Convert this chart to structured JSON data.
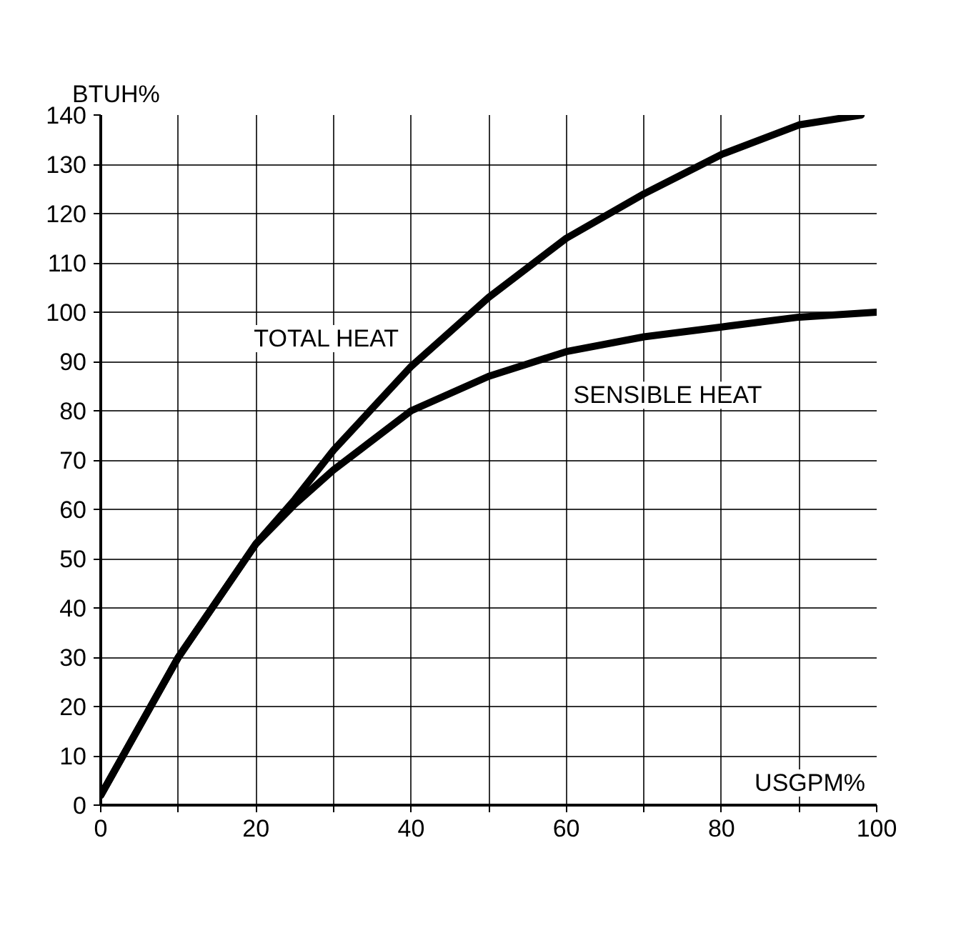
{
  "chart_data": {
    "type": "line",
    "xlabel": "USGPM%",
    "ylabel": "BTUH%",
    "x": [
      0,
      10,
      20,
      25,
      30,
      40,
      50,
      60,
      70,
      80,
      90,
      98
    ],
    "series": [
      {
        "name": "TOTAL HEAT",
        "color": "#000000",
        "values": [
          2,
          30,
          53,
          62,
          72,
          89,
          103,
          115,
          124,
          132,
          138,
          140
        ]
      },
      {
        "name": "SENSIBLE HEAT",
        "color": "#000000",
        "x": [
          0,
          10,
          20,
          25,
          30,
          40,
          50,
          60,
          70,
          80,
          90,
          100
        ],
        "values": [
          2,
          30,
          53,
          61,
          68,
          80,
          87,
          92,
          95,
          97,
          99,
          100
        ]
      }
    ],
    "xlim": [
      0,
      100
    ],
    "ylim": [
      0,
      140
    ],
    "xticks": [
      0,
      {
        "value": 10,
        "label": null
      },
      20,
      {
        "value": 30,
        "label": null
      },
      40,
      {
        "value": 50,
        "label": null
      },
      60,
      {
        "value": 70,
        "label": null
      },
      80,
      {
        "value": 90,
        "label": null
      },
      100
    ],
    "yticks": [
      0,
      10,
      20,
      30,
      40,
      50,
      60,
      70,
      80,
      90,
      100,
      110,
      120,
      130,
      140
    ],
    "grid": true,
    "marker": "none",
    "line_style": "solid"
  }
}
